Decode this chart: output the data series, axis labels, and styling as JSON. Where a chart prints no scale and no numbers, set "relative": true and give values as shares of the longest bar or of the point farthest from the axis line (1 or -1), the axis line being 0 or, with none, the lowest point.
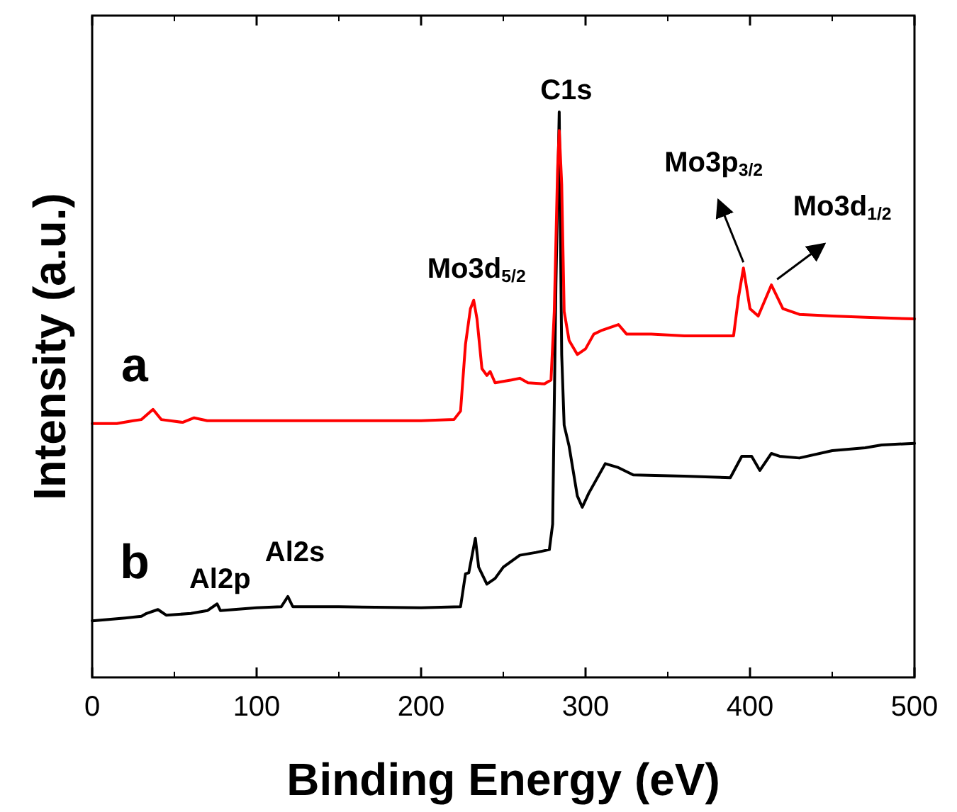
{
  "chart_data": {
    "type": "line",
    "xlabel": "Binding Energy (eV)",
    "ylabel": "Intensity (a.u.)",
    "relative": true,
    "xlim": [
      0,
      500
    ],
    "xticks": [
      0,
      100,
      200,
      300,
      400,
      500
    ],
    "tick_labels": "x",
    "grid": false,
    "marker": "none",
    "line_style": "solid",
    "series": [
      {
        "name": "a",
        "color": "#ff0000",
        "x": [
          0,
          15,
          25,
          30,
          37,
          42,
          55,
          62,
          70,
          100,
          150,
          200,
          220,
          224,
          227,
          230,
          232,
          234,
          237,
          240,
          242,
          245,
          255,
          260,
          265,
          275,
          279,
          281,
          283,
          284,
          285.5,
          287,
          290,
          295,
          300,
          305,
          310,
          320,
          325,
          340,
          360,
          390,
          393,
          396,
          400,
          405,
          413,
          420,
          430,
          450,
          470,
          500
        ],
        "values": [
          0.449,
          0.449,
          0.454,
          0.456,
          0.474,
          0.456,
          0.451,
          0.459,
          0.454,
          0.454,
          0.454,
          0.454,
          0.456,
          0.471,
          0.589,
          0.652,
          0.667,
          0.634,
          0.546,
          0.534,
          0.541,
          0.521,
          0.526,
          0.529,
          0.521,
          0.519,
          0.526,
          0.647,
          0.897,
          0.967,
          0.872,
          0.647,
          0.596,
          0.571,
          0.581,
          0.607,
          0.614,
          0.624,
          0.607,
          0.607,
          0.604,
          0.604,
          0.672,
          0.724,
          0.652,
          0.639,
          0.694,
          0.652,
          0.642,
          0.639,
          0.637,
          0.634
        ]
      },
      {
        "name": "b",
        "color": "#000000",
        "x": [
          0,
          20,
          30,
          33,
          40,
          45,
          60,
          70,
          76,
          78,
          100,
          115,
          119,
          122,
          150,
          200,
          224,
          227,
          229,
          233,
          235,
          240,
          245,
          250,
          260,
          270,
          278,
          280,
          282,
          284,
          285.5,
          287,
          290,
          295,
          298,
          302,
          312,
          320,
          329,
          360,
          388,
          395,
          401,
          406,
          413,
          418,
          430,
          450,
          470,
          480,
          500
        ],
        "values": [
          0.1,
          0.105,
          0.108,
          0.113,
          0.12,
          0.11,
          0.113,
          0.118,
          0.13,
          0.118,
          0.123,
          0.125,
          0.143,
          0.125,
          0.125,
          0.123,
          0.125,
          0.183,
          0.185,
          0.246,
          0.195,
          0.165,
          0.175,
          0.195,
          0.216,
          0.221,
          0.226,
          0.271,
          0.697,
          1,
          0.571,
          0.446,
          0.409,
          0.321,
          0.301,
          0.326,
          0.378,
          0.371,
          0.358,
          0.356,
          0.353,
          0.391,
          0.391,
          0.366,
          0.396,
          0.391,
          0.388,
          0.401,
          0.406,
          0.411,
          0.414
        ]
      }
    ],
    "annotations": [
      {
        "text": "C1s",
        "x": 284,
        "y": 1
      },
      {
        "text": "Mo3d$_{5/2}$",
        "x": 232,
        "y": 0.667
      },
      {
        "text": "Mo3p$_{3/2}$",
        "x": 396,
        "y": 0.724
      },
      {
        "text": "Mo3d$_{1/2}$",
        "x": 413,
        "y": 0.694
      },
      {
        "text": "Al2p",
        "x": 76,
        "y": 0.13
      },
      {
        "text": "Al2s",
        "x": 119,
        "y": 0.143
      }
    ]
  }
}
